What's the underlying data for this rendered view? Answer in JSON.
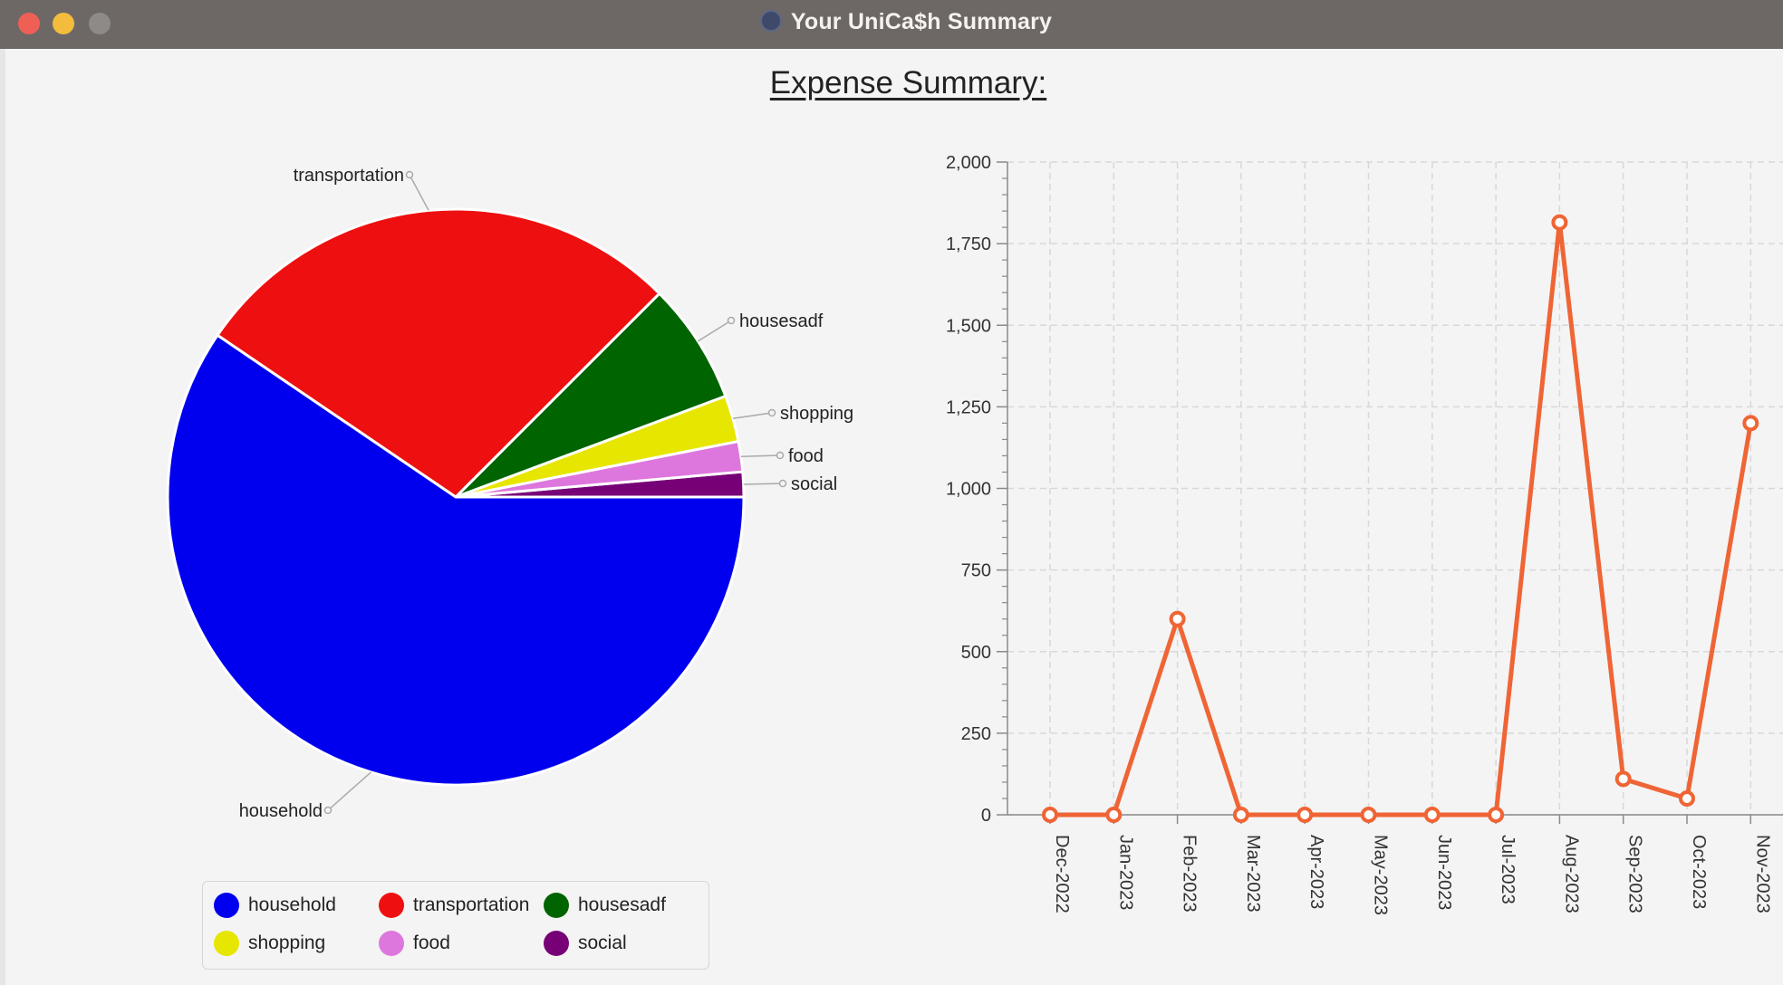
{
  "window": {
    "title": "Your UniCa$h Summary"
  },
  "page": {
    "heading": "Expense Summary:"
  },
  "pie": {
    "slices": [
      {
        "label": "household",
        "color": "#0000ee",
        "value": 59.5
      },
      {
        "label": "transportation",
        "color": "#ee1010",
        "value": 28.0
      },
      {
        "label": "housesadf",
        "color": "#006400",
        "value": 6.8
      },
      {
        "label": "shopping",
        "color": "#e6e600",
        "value": 2.6
      },
      {
        "label": "food",
        "color": "#dd77dd",
        "value": 1.7
      },
      {
        "label": "social",
        "color": "#770077",
        "value": 1.4
      }
    ]
  },
  "legend": {
    "items": [
      {
        "label": "household",
        "color": "#0000ee"
      },
      {
        "label": "transportation",
        "color": "#ee1010"
      },
      {
        "label": "housesadf",
        "color": "#006400"
      },
      {
        "label": "shopping",
        "color": "#e6e600"
      },
      {
        "label": "food",
        "color": "#dd77dd"
      },
      {
        "label": "social",
        "color": "#770077"
      }
    ]
  },
  "chart_data": {
    "type": "line",
    "x": [
      "Dec-2022",
      "Jan-2023",
      "Feb-2023",
      "Mar-2023",
      "Apr-2023",
      "May-2023",
      "Jun-2023",
      "Jul-2023",
      "Aug-2023",
      "Sep-2023",
      "Oct-2023",
      "Nov-2023"
    ],
    "series": [
      {
        "values": [
          0,
          0,
          600,
          0,
          0,
          0,
          0,
          0,
          1815,
          110,
          50,
          1200
        ]
      }
    ],
    "ylim": [
      0,
      2000
    ],
    "yticks": [
      "0",
      "250",
      "500",
      "750",
      "1,000",
      "1,250",
      "1,500",
      "1,750",
      "2,000"
    ],
    "grid": true,
    "line_color": "#ef6535"
  }
}
